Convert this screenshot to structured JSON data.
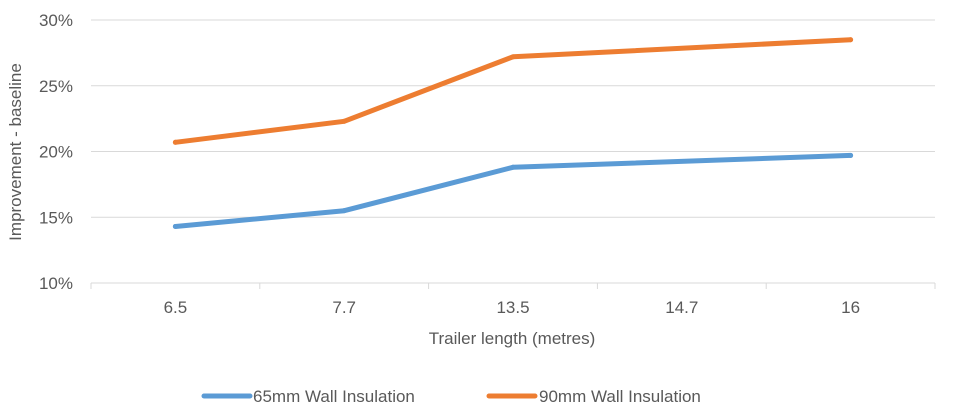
{
  "chart_data": {
    "type": "line",
    "categories": [
      "6.5",
      "7.7",
      "13.5",
      "14.7",
      "16"
    ],
    "x_positions": [
      0.5,
      1.5,
      2.5,
      3.5,
      4.5
    ],
    "series": [
      {
        "name": "65mm Wall Insulation",
        "color": "#5B9BD5",
        "points": [
          [
            0.5,
            14.3
          ],
          [
            1.5,
            15.5
          ],
          [
            2.5,
            18.8
          ],
          [
            4.5,
            19.7
          ]
        ]
      },
      {
        "name": "90mm Wall Insulation",
        "color": "#ED7D31",
        "points": [
          [
            0.5,
            20.7
          ],
          [
            1.5,
            22.3
          ],
          [
            2.5,
            27.2
          ],
          [
            4.5,
            28.5
          ]
        ]
      }
    ],
    "xlabel": "Trailer length (metres)",
    "ylabel": "Improvement - baseline",
    "ylim": [
      10,
      30
    ],
    "yticks": [
      10,
      15,
      20,
      25,
      30
    ],
    "ytick_labels": [
      "10%",
      "15%",
      "20%",
      "25%",
      "30%"
    ],
    "grid": true,
    "legend_position": "bottom"
  }
}
